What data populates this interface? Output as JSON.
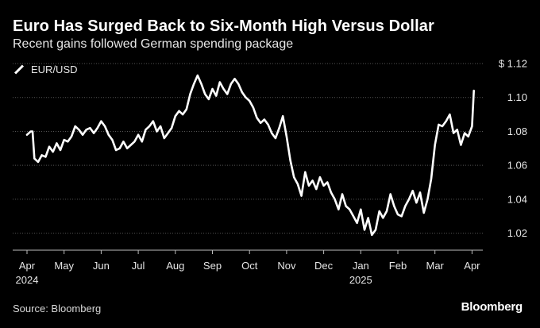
{
  "header": {
    "title": "Euro Has Surged Back to Six-Month High Versus Dollar",
    "subtitle": "Recent gains followed German spending package"
  },
  "footer": {
    "source": "Source: Bloomberg",
    "logo": "Bloomberg"
  },
  "colors": {
    "background": "#000000",
    "line": "#ffffff",
    "grid": "#555555",
    "text": "#e6e6e6"
  },
  "chart_data": {
    "type": "line",
    "title": "Euro Has Surged Back to Six-Month High Versus Dollar",
    "subtitle": "Recent gains followed German spending package",
    "xlabel": "",
    "ylabel": "",
    "ylim": [
      1.01,
      1.12
    ],
    "xlim": [
      0,
      12.45
    ],
    "grid": true,
    "legend_position": "top-left",
    "y_ticks": [
      {
        "value": 1.12,
        "label": "$ 1.12"
      },
      {
        "value": 1.1,
        "label": "1.10"
      },
      {
        "value": 1.08,
        "label": "1.08"
      },
      {
        "value": 1.06,
        "label": "1.06"
      },
      {
        "value": 1.04,
        "label": "1.04"
      },
      {
        "value": 1.02,
        "label": "1.02"
      }
    ],
    "x_ticks": [
      {
        "value": 0,
        "label": "Apr",
        "sublabel": "2024"
      },
      {
        "value": 1,
        "label": "May",
        "sublabel": ""
      },
      {
        "value": 2,
        "label": "Jun",
        "sublabel": ""
      },
      {
        "value": 3,
        "label": "Jul",
        "sublabel": ""
      },
      {
        "value": 4,
        "label": "Aug",
        "sublabel": ""
      },
      {
        "value": 5,
        "label": "Sep",
        "sublabel": ""
      },
      {
        "value": 6,
        "label": "Oct",
        "sublabel": ""
      },
      {
        "value": 7,
        "label": "Nov",
        "sublabel": ""
      },
      {
        "value": 8,
        "label": "Dec",
        "sublabel": ""
      },
      {
        "value": 9,
        "label": "Jan",
        "sublabel": "2025"
      },
      {
        "value": 10,
        "label": "Feb",
        "sublabel": ""
      },
      {
        "value": 11,
        "label": "Mar",
        "sublabel": ""
      },
      {
        "value": 12,
        "label": "Apr",
        "sublabel": ""
      }
    ],
    "series": [
      {
        "name": "EUR/USD",
        "x": [
          0.0,
          0.1,
          0.15,
          0.2,
          0.3,
          0.4,
          0.5,
          0.6,
          0.7,
          0.8,
          0.9,
          1.0,
          1.1,
          1.2,
          1.3,
          1.4,
          1.5,
          1.6,
          1.7,
          1.8,
          1.9,
          2.0,
          2.1,
          2.2,
          2.3,
          2.4,
          2.5,
          2.6,
          2.7,
          2.8,
          2.9,
          3.0,
          3.1,
          3.2,
          3.3,
          3.4,
          3.5,
          3.6,
          3.7,
          3.8,
          3.9,
          4.0,
          4.1,
          4.2,
          4.3,
          4.4,
          4.5,
          4.6,
          4.7,
          4.8,
          4.9,
          5.0,
          5.1,
          5.2,
          5.3,
          5.4,
          5.5,
          5.6,
          5.7,
          5.8,
          5.9,
          6.0,
          6.1,
          6.2,
          6.3,
          6.4,
          6.5,
          6.6,
          6.7,
          6.8,
          6.9,
          7.0,
          7.1,
          7.2,
          7.3,
          7.4,
          7.5,
          7.6,
          7.7,
          7.8,
          7.9,
          8.0,
          8.1,
          8.2,
          8.3,
          8.4,
          8.5,
          8.6,
          8.7,
          8.8,
          8.9,
          9.0,
          9.1,
          9.2,
          9.3,
          9.4,
          9.5,
          9.6,
          9.7,
          9.8,
          9.9,
          10.0,
          10.1,
          10.2,
          10.3,
          10.4,
          10.5,
          10.6,
          10.7,
          10.8,
          10.9,
          11.0,
          11.1,
          11.2,
          11.3,
          11.4,
          11.5,
          11.6,
          11.7,
          11.8,
          11.9,
          12.0,
          12.05
        ],
        "values": [
          1.078,
          1.08,
          1.08,
          1.064,
          1.062,
          1.066,
          1.065,
          1.071,
          1.068,
          1.073,
          1.069,
          1.075,
          1.074,
          1.077,
          1.083,
          1.081,
          1.078,
          1.081,
          1.082,
          1.079,
          1.082,
          1.086,
          1.083,
          1.078,
          1.075,
          1.069,
          1.07,
          1.074,
          1.07,
          1.072,
          1.074,
          1.078,
          1.074,
          1.081,
          1.083,
          1.086,
          1.08,
          1.083,
          1.076,
          1.079,
          1.082,
          1.089,
          1.092,
          1.09,
          1.093,
          1.102,
          1.108,
          1.113,
          1.108,
          1.102,
          1.099,
          1.105,
          1.101,
          1.109,
          1.105,
          1.102,
          1.108,
          1.111,
          1.108,
          1.103,
          1.1,
          1.098,
          1.094,
          1.088,
          1.085,
          1.087,
          1.084,
          1.079,
          1.076,
          1.082,
          1.089,
          1.077,
          1.063,
          1.053,
          1.049,
          1.042,
          1.056,
          1.048,
          1.051,
          1.046,
          1.053,
          1.048,
          1.05,
          1.044,
          1.04,
          1.034,
          1.043,
          1.036,
          1.034,
          1.03,
          1.026,
          1.034,
          1.022,
          1.029,
          1.019,
          1.022,
          1.033,
          1.029,
          1.033,
          1.043,
          1.036,
          1.031,
          1.03,
          1.036,
          1.04,
          1.045,
          1.038,
          1.044,
          1.032,
          1.04,
          1.052,
          1.072,
          1.084,
          1.083,
          1.086,
          1.09,
          1.079,
          1.081,
          1.072,
          1.079,
          1.077,
          1.083,
          1.104
        ]
      }
    ]
  }
}
